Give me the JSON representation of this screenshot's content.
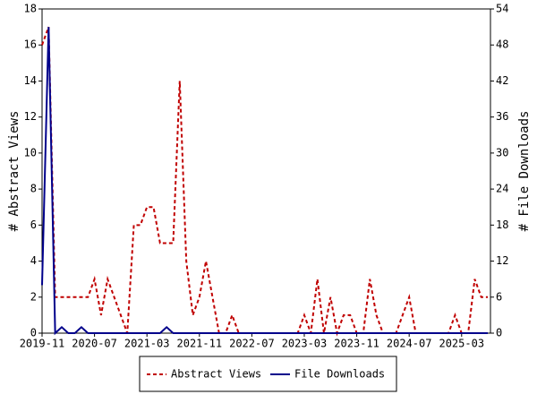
{
  "chart_data": {
    "type": "line",
    "categories": [
      "2019-11",
      null,
      null,
      null,
      null,
      null,
      null,
      null,
      "2020-07",
      null,
      null,
      null,
      null,
      null,
      null,
      null,
      "2021-03",
      null,
      null,
      null,
      null,
      null,
      null,
      null,
      "2021-11",
      null,
      null,
      null,
      null,
      null,
      null,
      null,
      "2022-07",
      null,
      null,
      null,
      null,
      null,
      null,
      null,
      "2023-03",
      null,
      null,
      null,
      null,
      null,
      null,
      null,
      "2023-11",
      null,
      null,
      null,
      null,
      null,
      null,
      null,
      "2024-07",
      null,
      null,
      null,
      null,
      null,
      null,
      null,
      "2025-03",
      null,
      null,
      null,
      null
    ],
    "ylabel": "# Abstract Views",
    "y2label": "# File Downloads",
    "ylim": [
      0,
      18
    ],
    "yticks": [
      0,
      2,
      4,
      6,
      8,
      10,
      12,
      14,
      16,
      18
    ],
    "y2lim": [
      0,
      54
    ],
    "y2ticks": [
      0,
      6,
      12,
      18,
      24,
      30,
      36,
      42,
      48,
      54
    ],
    "legend": "bottom",
    "series": [
      {
        "name": "Abstract Views",
        "color": "#c00000",
        "line_style": "dashed",
        "values": [
          16,
          17,
          2,
          2,
          2,
          2,
          2,
          2,
          3,
          1,
          3,
          2,
          1,
          0,
          6,
          6,
          7,
          7,
          5,
          5,
          5,
          14,
          4,
          1,
          2,
          4,
          2,
          0,
          0,
          1,
          0,
          0,
          0,
          0,
          0,
          0,
          0,
          0,
          0,
          0,
          1,
          0,
          3,
          0,
          2,
          0,
          1,
          1,
          0,
          0,
          3,
          1,
          0,
          0,
          0,
          1,
          2,
          0,
          0,
          0,
          0,
          0,
          0,
          1,
          0,
          0,
          3,
          2,
          2
        ]
      },
      {
        "name": "File Downloads",
        "color": "#00008b",
        "line_style": "solid",
        "axis": "y2",
        "values": [
          8,
          51,
          0,
          1,
          0,
          0,
          1,
          0,
          0,
          0,
          0,
          0,
          0,
          0,
          0,
          0,
          0,
          0,
          0,
          1,
          0,
          0,
          0,
          0,
          0,
          0,
          0,
          0,
          0,
          0,
          0,
          0,
          0,
          0,
          0,
          0,
          0,
          0,
          0,
          0,
          0,
          0,
          0,
          0,
          0,
          0,
          0,
          0,
          0,
          0,
          0,
          0,
          0,
          0,
          0,
          0,
          0,
          0,
          0,
          0,
          0,
          0,
          0,
          0,
          0,
          0,
          0,
          0,
          0
        ]
      }
    ]
  }
}
